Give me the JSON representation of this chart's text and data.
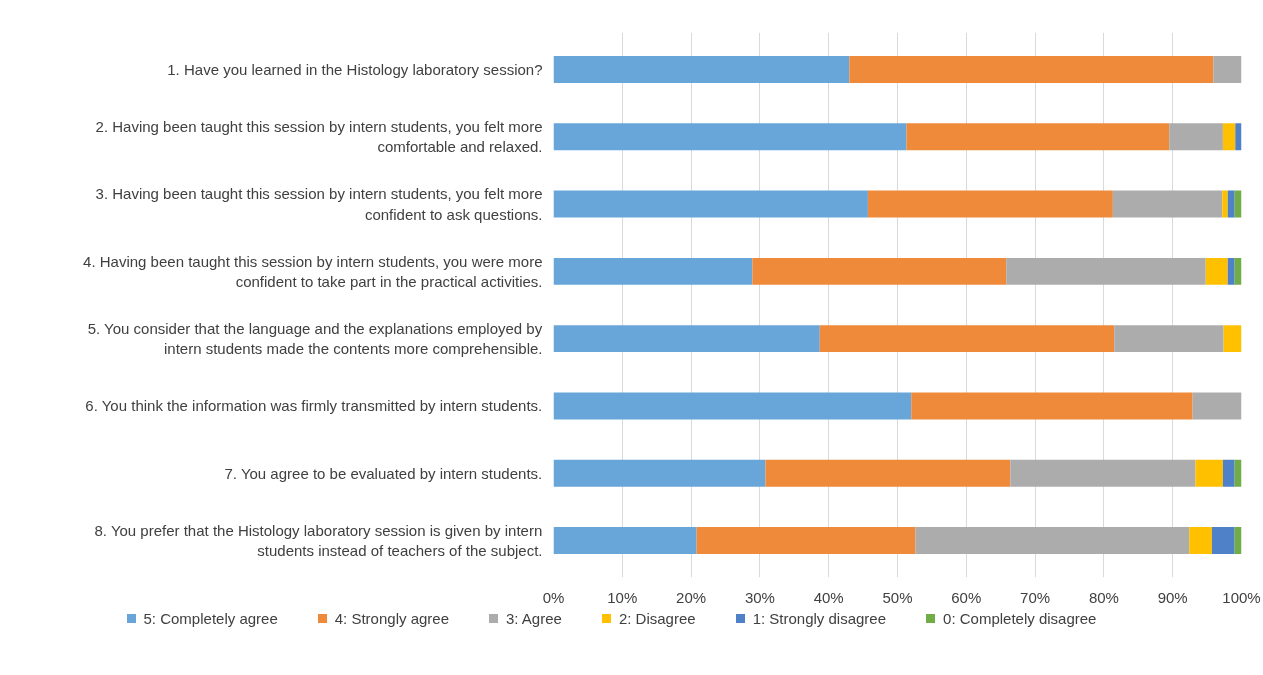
{
  "chart_data": {
    "type": "bar",
    "orientation": "horizontal",
    "stacked": true,
    "categories": [
      "1. Have you learned in the Histology laboratory session?",
      "2. Having been taught this session by intern students, you felt more comfortable and relaxed.",
      "3. Having been taught this session by intern students, you felt more confident to ask questions.",
      "4. Having been taught this session by intern students, you were more confident to take part in the practical activities.",
      "5. You consider that the language and the explanations employed by intern students made the contents more comprehensible.",
      "6. You think the information was firmly transmitted by intern students.",
      "7. You agree to be evaluated by intern students.",
      "8. You prefer that the Histology laboratory session is given by intern students instead of teachers of the subject."
    ],
    "series": [
      {
        "name": "5: Completely agree",
        "color": "#68a5d9",
        "values": [
          43.0,
          51.3,
          45.7,
          28.9,
          38.7,
          52.0,
          30.8,
          20.8
        ]
      },
      {
        "name": "4: Strongly agree",
        "color": "#ef8a3b",
        "values": [
          52.9,
          38.2,
          35.6,
          36.9,
          42.8,
          40.9,
          35.6,
          31.8
        ]
      },
      {
        "name": "3: Agree",
        "color": "#acacac",
        "values": [
          4.1,
          7.8,
          15.9,
          29.0,
          15.9,
          7.1,
          26.9,
          39.8
        ]
      },
      {
        "name": "2: Disagree",
        "color": "#ffc000",
        "values": [
          0,
          1.8,
          0.8,
          3.2,
          2.6,
          0,
          4.0,
          3.3
        ]
      },
      {
        "name": "1: Strongly disagree",
        "color": "#4f81c8",
        "values": [
          0,
          0.9,
          1.0,
          1.0,
          0,
          0,
          1.7,
          3.3
        ]
      },
      {
        "name": "0: Completely disagree",
        "color": "#70ad47",
        "values": [
          0,
          0,
          1.0,
          1.0,
          0,
          0,
          1.0,
          1.0
        ]
      }
    ],
    "xlim": [
      0,
      100
    ],
    "xticks": [
      {
        "value": 0,
        "label": "0%"
      },
      {
        "value": 10,
        "label": "10%"
      },
      {
        "value": 20,
        "label": "20%"
      },
      {
        "value": 30,
        "label": "30%"
      },
      {
        "value": 40,
        "label": "40%"
      },
      {
        "value": 50,
        "label": "50%"
      },
      {
        "value": 60,
        "label": "60%"
      },
      {
        "value": 70,
        "label": "70%"
      },
      {
        "value": 80,
        "label": "80%"
      },
      {
        "value": 90,
        "label": "90%"
      },
      {
        "value": 100,
        "label": "100%"
      }
    ],
    "grid": "x",
    "legend": "bottom"
  }
}
